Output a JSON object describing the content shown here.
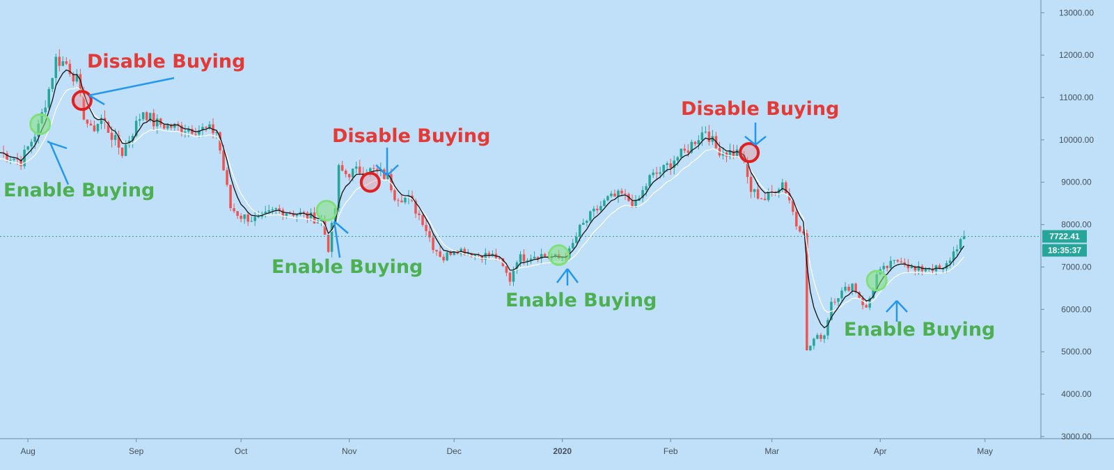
{
  "colors": {
    "background": "#bfe0f8",
    "axis_bg": "#bfe0f8",
    "grid_line": "#93c0e0",
    "candle_up": "#26a69a",
    "candle_down": "#ef5350",
    "ma_fast": "#111111",
    "ma_slow": "#ffffff",
    "enable_text": "#4caf50",
    "disable_text": "#e53935",
    "enable_circle": "#7fe07a",
    "disable_circle": "#e02020",
    "arrow": "#2196f3",
    "price_tag": "#26a69a",
    "price_line": "#26a69a"
  },
  "chart_data": {
    "type": "candlestick",
    "y_axis": {
      "ticks": [
        "13000.00",
        "12000.00",
        "11000.00",
        "10000.00",
        "9000.00",
        "8000.00",
        "7000.00",
        "6000.00",
        "5000.00",
        "4000.00",
        "3000.00"
      ],
      "ylim": [
        2950,
        13300
      ],
      "position": "right"
    },
    "x_axis": {
      "ticks": [
        {
          "label": "Aug",
          "day": 0
        },
        {
          "label": "Sep",
          "day": 31
        },
        {
          "label": "Oct",
          "day": 61
        },
        {
          "label": "Nov",
          "day": 92
        },
        {
          "label": "Dec",
          "day": 122
        },
        {
          "label": "2020",
          "day": 153,
          "bold": true
        },
        {
          "label": "Feb",
          "day": 184
        },
        {
          "label": "Mar",
          "day": 213
        },
        {
          "label": "Apr",
          "day": 244
        },
        {
          "label": "May",
          "day": 274
        }
      ],
      "xlim": [
        -8,
        290
      ]
    },
    "price_anchors": [
      {
        "day": -8,
        "price": 9700
      },
      {
        "day": -2,
        "price": 9500
      },
      {
        "day": 3,
        "price": 10300
      },
      {
        "day": 6,
        "price": 11200
      },
      {
        "day": 8,
        "price": 11900
      },
      {
        "day": 11,
        "price": 11800
      },
      {
        "day": 14,
        "price": 11400
      },
      {
        "day": 16,
        "price": 10600
      },
      {
        "day": 18,
        "price": 10200
      },
      {
        "day": 21,
        "price": 10500
      },
      {
        "day": 24,
        "price": 10100
      },
      {
        "day": 27,
        "price": 9700
      },
      {
        "day": 30,
        "price": 10200
      },
      {
        "day": 33,
        "price": 10700
      },
      {
        "day": 36,
        "price": 10400
      },
      {
        "day": 42,
        "price": 10300
      },
      {
        "day": 50,
        "price": 10250
      },
      {
        "day": 54,
        "price": 10200
      },
      {
        "day": 58,
        "price": 8400
      },
      {
        "day": 61,
        "price": 8200
      },
      {
        "day": 66,
        "price": 8100
      },
      {
        "day": 71,
        "price": 8350
      },
      {
        "day": 78,
        "price": 8250
      },
      {
        "day": 84,
        "price": 8100
      },
      {
        "day": 86,
        "price": 7450
      },
      {
        "day": 88,
        "price": 8400
      },
      {
        "day": 89,
        "price": 9300
      },
      {
        "day": 91,
        "price": 9200
      },
      {
        "day": 96,
        "price": 9300
      },
      {
        "day": 100,
        "price": 9250
      },
      {
        "day": 103,
        "price": 9100
      },
      {
        "day": 105,
        "price": 8700
      },
      {
        "day": 109,
        "price": 8600
      },
      {
        "day": 113,
        "price": 8100
      },
      {
        "day": 116,
        "price": 7500
      },
      {
        "day": 119,
        "price": 7200
      },
      {
        "day": 122,
        "price": 7450
      },
      {
        "day": 128,
        "price": 7300
      },
      {
        "day": 134,
        "price": 7250
      },
      {
        "day": 138,
        "price": 6700
      },
      {
        "day": 140,
        "price": 7200
      },
      {
        "day": 146,
        "price": 7300
      },
      {
        "day": 152,
        "price": 7200
      },
      {
        "day": 155,
        "price": 7350
      },
      {
        "day": 158,
        "price": 7900
      },
      {
        "day": 161,
        "price": 8200
      },
      {
        "day": 166,
        "price": 8600
      },
      {
        "day": 170,
        "price": 8700
      },
      {
        "day": 174,
        "price": 8450
      },
      {
        "day": 178,
        "price": 9100
      },
      {
        "day": 182,
        "price": 9300
      },
      {
        "day": 185,
        "price": 9550
      },
      {
        "day": 188,
        "price": 9700
      },
      {
        "day": 191,
        "price": 10000
      },
      {
        "day": 194,
        "price": 10250
      },
      {
        "day": 197,
        "price": 9800
      },
      {
        "day": 200,
        "price": 9700
      },
      {
        "day": 204,
        "price": 9700
      },
      {
        "day": 207,
        "price": 8800
      },
      {
        "day": 211,
        "price": 8600
      },
      {
        "day": 216,
        "price": 9000
      },
      {
        "day": 218,
        "price": 8600
      },
      {
        "day": 220,
        "price": 8000
      },
      {
        "day": 222,
        "price": 7900
      },
      {
        "day": 223,
        "price": 5000
      },
      {
        "day": 225,
        "price": 5300
      },
      {
        "day": 228,
        "price": 5400
      },
      {
        "day": 230,
        "price": 6200
      },
      {
        "day": 233,
        "price": 6400
      },
      {
        "day": 236,
        "price": 6600
      },
      {
        "day": 240,
        "price": 6000
      },
      {
        "day": 243,
        "price": 6800
      },
      {
        "day": 246,
        "price": 7000
      },
      {
        "day": 250,
        "price": 7200
      },
      {
        "day": 254,
        "price": 6900
      },
      {
        "day": 258,
        "price": 7000
      },
      {
        "day": 262,
        "price": 6900
      },
      {
        "day": 266,
        "price": 7500
      },
      {
        "day": 268,
        "price": 7722
      }
    ],
    "last_price": {
      "label": "7722.41",
      "value": 7722.41,
      "countdown": "18:35:37"
    },
    "annotations": [
      {
        "kind": "enable",
        "text": "Enable Buying",
        "day": 3,
        "price": 10370
      },
      {
        "kind": "disable",
        "text": "Disable Buying",
        "day": 15,
        "price": 10930
      },
      {
        "kind": "disable",
        "text": "Disable Buying",
        "day": 90,
        "price": 10180
      },
      {
        "kind": "enable",
        "text": "Enable Buying",
        "day": 86,
        "price": 8330
      },
      {
        "kind": "disable",
        "text": "Disable Buying",
        "day": 99,
        "price": 9000
      },
      {
        "kind": "enable",
        "text": "Enable Buying",
        "day": 86,
        "price": 7000
      },
      {
        "kind": "enable",
        "text": "Enable Buying",
        "day": 150,
        "price": 7280
      },
      {
        "kind": "enable",
        "text": "Enable Buying",
        "day": 150,
        "price": 6220
      },
      {
        "kind": "disable",
        "text": "Disable Buying",
        "day": 193,
        "price": 10830
      },
      {
        "kind": "disable",
        "text": "Disable Buying",
        "day": 206,
        "price": 9700
      },
      {
        "kind": "enable",
        "text": "Enable Buying",
        "day": 235,
        "price": 5540
      },
      {
        "kind": "enable",
        "text": "Enable Buying",
        "day": 244,
        "price": 6680
      }
    ]
  }
}
